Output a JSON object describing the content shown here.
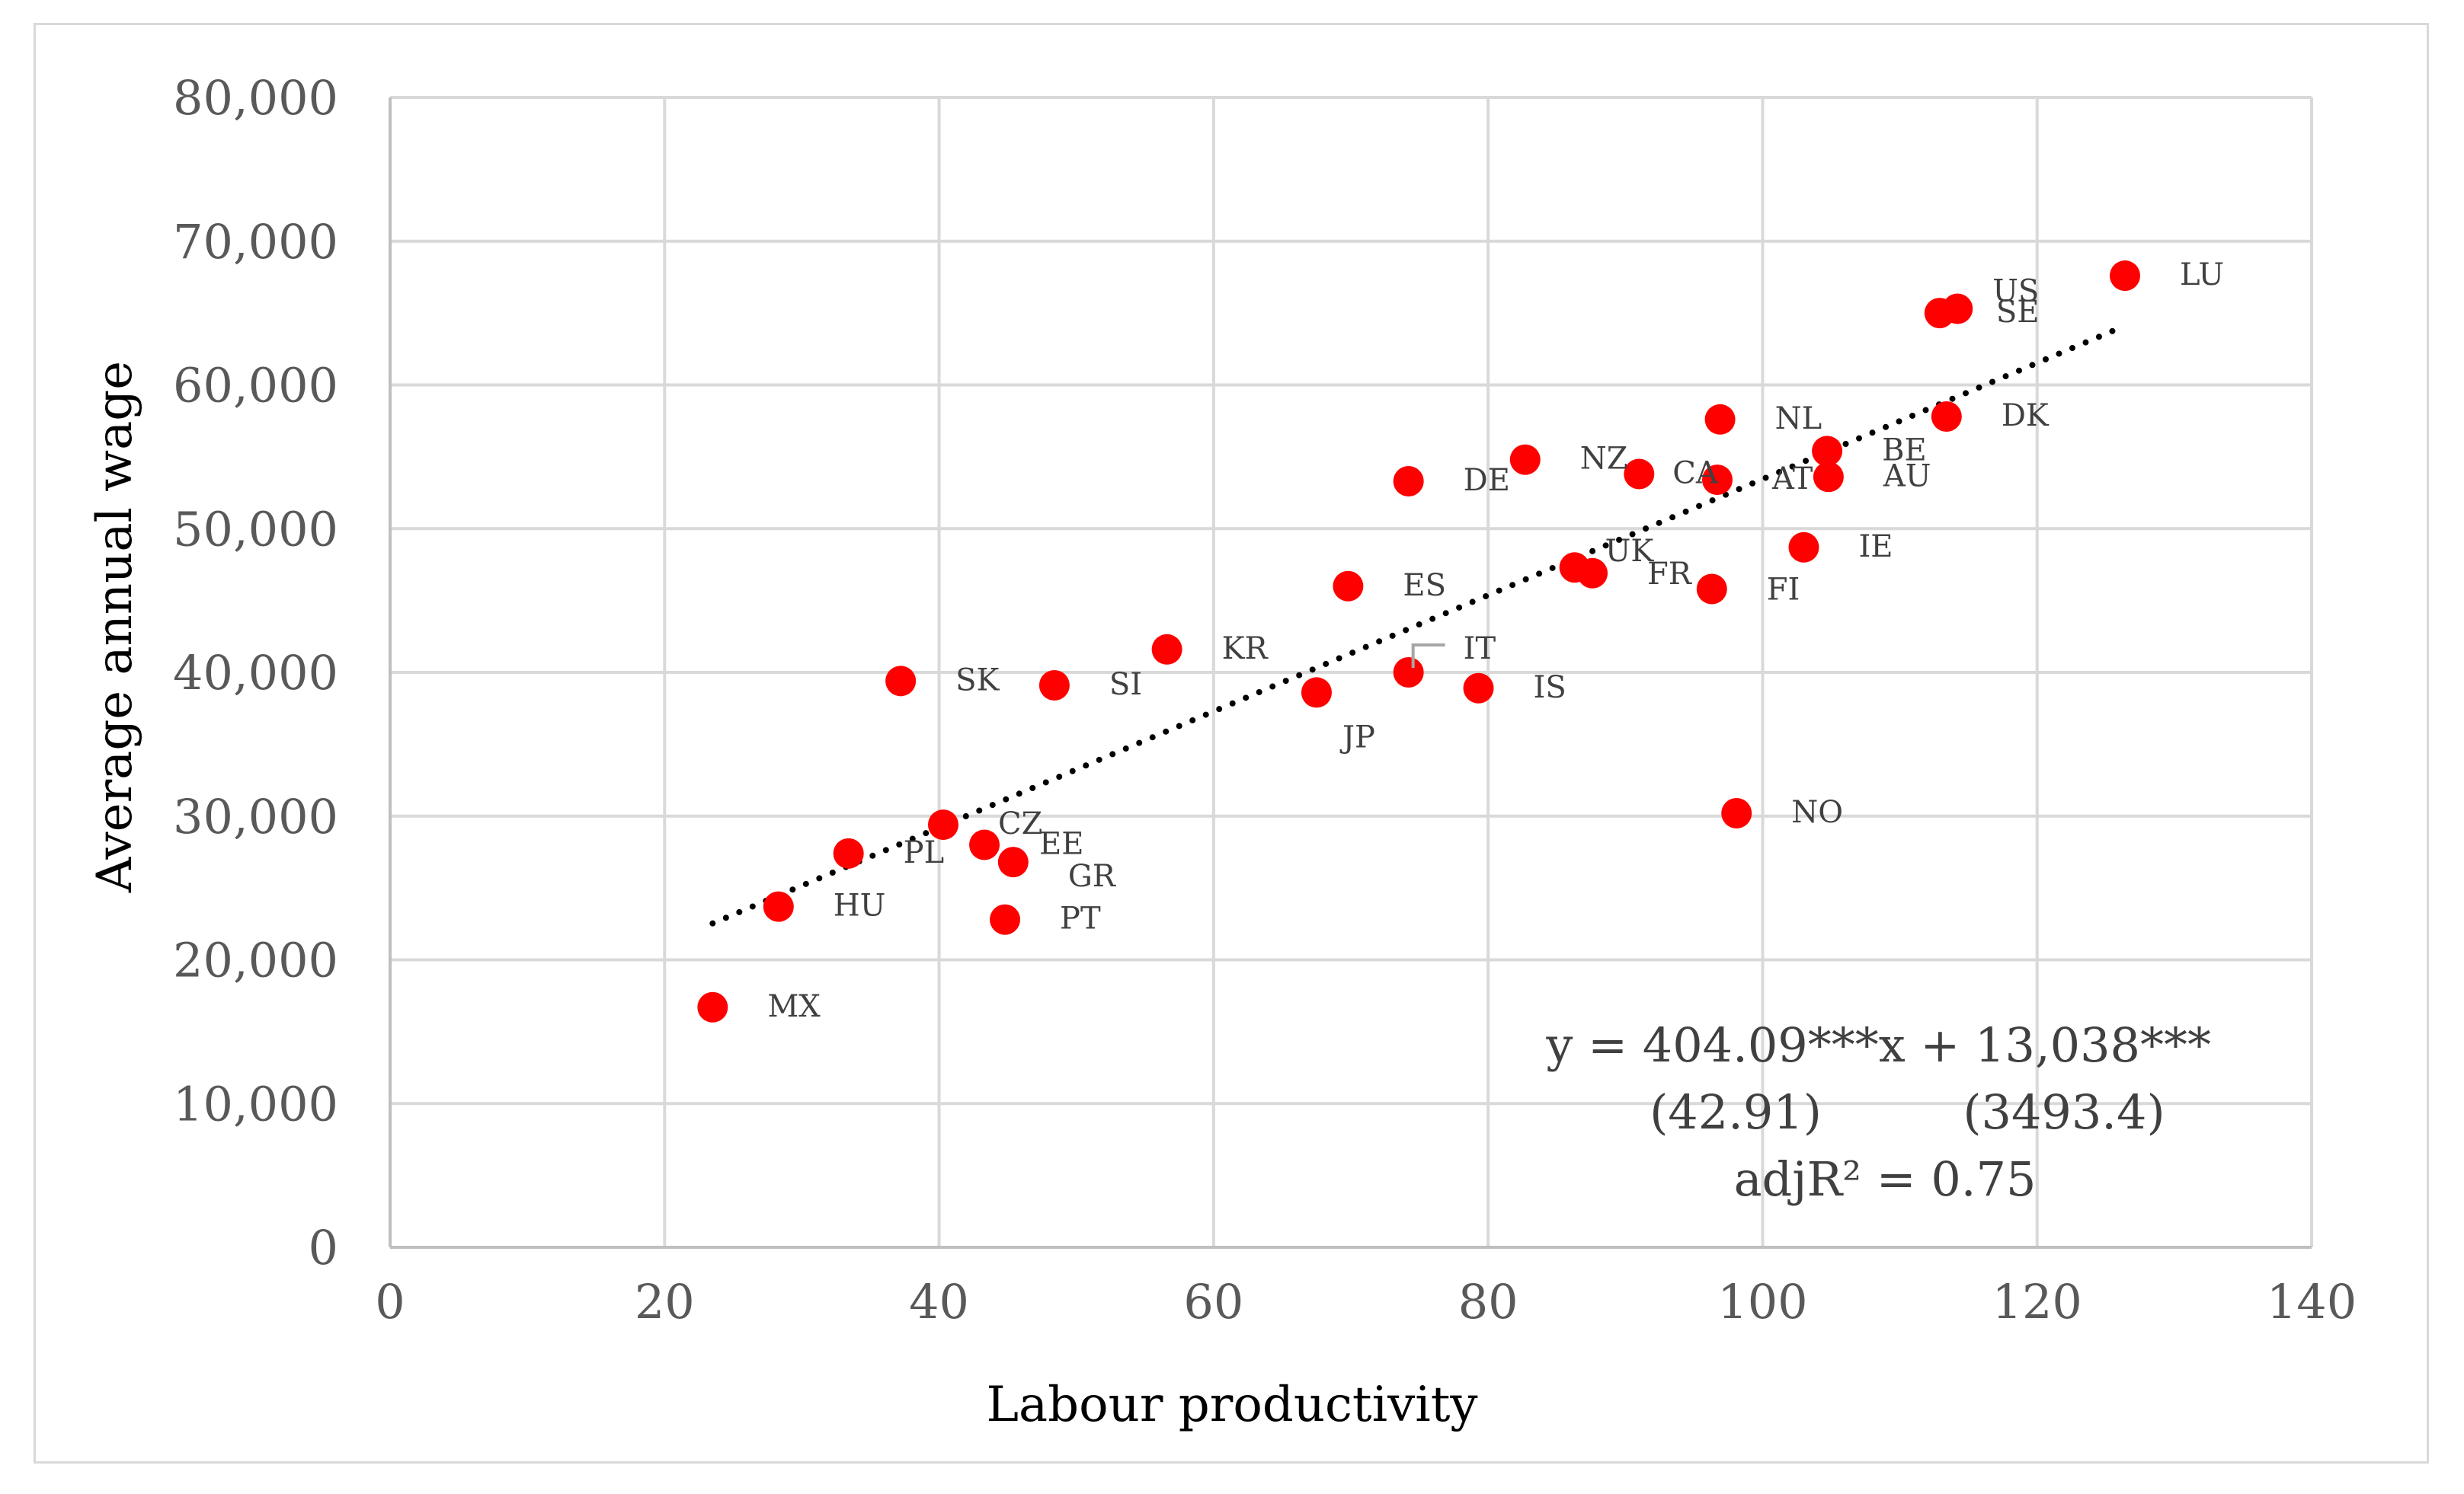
{
  "chart_data": {
    "type": "scatter",
    "title": "",
    "xlabel": "Labour productivity",
    "ylabel": "Average annual wage",
    "xlim": [
      0,
      140
    ],
    "ylim": [
      0,
      80000
    ],
    "xticks": [
      0,
      20,
      40,
      60,
      80,
      100,
      120,
      140
    ],
    "yticks": [
      0,
      10000,
      20000,
      30000,
      40000,
      50000,
      60000,
      70000,
      80000
    ],
    "ytick_labels": [
      "0",
      "10,000",
      "20,000",
      "30,000",
      "40,000",
      "50,000",
      "60,000",
      "70,000",
      "80,000"
    ],
    "grid": true,
    "legend": "none",
    "point_color": "#ff0000",
    "trendline_color": "#000000",
    "points": [
      {
        "label": "MX",
        "x": 23.5,
        "y": 16700
      },
      {
        "label": "HU",
        "x": 28.3,
        "y": 23700
      },
      {
        "label": "PL",
        "x": 33.4,
        "y": 27400
      },
      {
        "label": "SK",
        "x": 37.2,
        "y": 39400
      },
      {
        "label": "CZ",
        "x": 40.3,
        "y": 29400
      },
      {
        "label": "EE",
        "x": 43.3,
        "y": 28000
      },
      {
        "label": "GR",
        "x": 45.4,
        "y": 26800
      },
      {
        "label": "PT",
        "x": 44.8,
        "y": 22800
      },
      {
        "label": "SI",
        "x": 48.4,
        "y": 39100
      },
      {
        "label": "KR",
        "x": 56.6,
        "y": 41600
      },
      {
        "label": "JP",
        "x": 67.5,
        "y": 38600
      },
      {
        "label": "ES",
        "x": 69.8,
        "y": 46000
      },
      {
        "label": "IT",
        "x": 74.2,
        "y": 40000
      },
      {
        "label": "DE",
        "x": 74.2,
        "y": 53300
      },
      {
        "label": "IS",
        "x": 79.3,
        "y": 38900
      },
      {
        "label": "NZ",
        "x": 82.7,
        "y": 54800
      },
      {
        "label": "UK",
        "x": 86.3,
        "y": 47300
      },
      {
        "label": "FR",
        "x": 87.6,
        "y": 46900
      },
      {
        "label": "CA",
        "x": 91.0,
        "y": 53800
      },
      {
        "label": "FI",
        "x": 96.3,
        "y": 45800
      },
      {
        "label": "AT",
        "x": 96.7,
        "y": 53400
      },
      {
        "label": "NL",
        "x": 96.9,
        "y": 57600
      },
      {
        "label": "NO",
        "x": 98.1,
        "y": 30200
      },
      {
        "label": "IE",
        "x": 103.0,
        "y": 48700
      },
      {
        "label": "BE",
        "x": 104.7,
        "y": 55400
      },
      {
        "label": "AU",
        "x": 104.8,
        "y": 53600
      },
      {
        "label": "SE",
        "x": 112.9,
        "y": 65000
      },
      {
        "label": "US",
        "x": 114.2,
        "y": 65300
      },
      {
        "label": "DK",
        "x": 113.4,
        "y": 57800
      },
      {
        "label": "LU",
        "x": 126.4,
        "y": 67600
      }
    ],
    "trendline": {
      "x_start": 23.5,
      "x_end": 126.4,
      "slope": 404.09,
      "intercept": 13038
    },
    "annotations": {
      "equation": "y = 404.09***x + 13,038***",
      "se_slope": "(42.91)",
      "se_intercept": "(3493.4)",
      "adj_r2": "adjR² = 0.75"
    }
  }
}
